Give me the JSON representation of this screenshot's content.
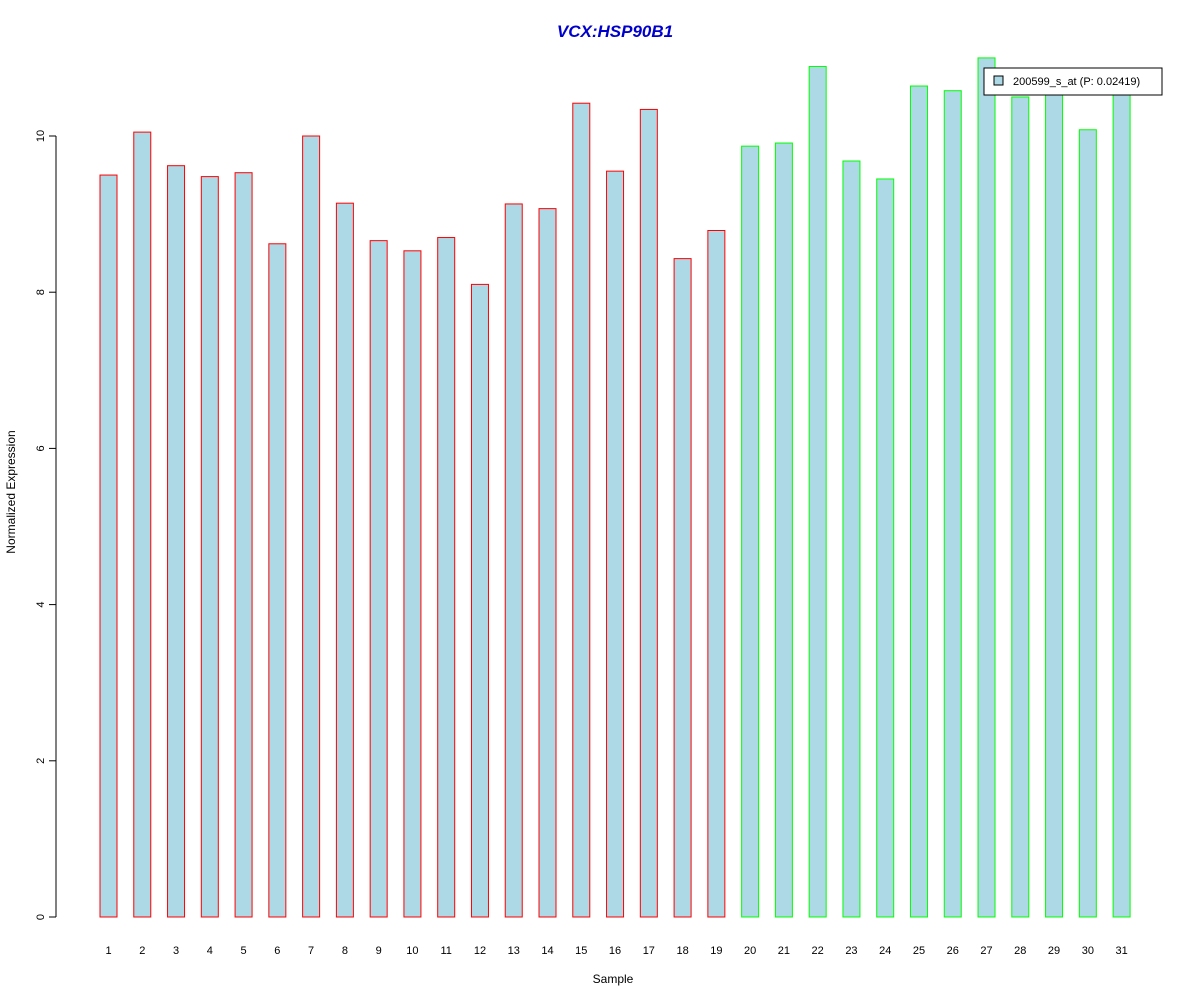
{
  "chart_data": {
    "type": "bar",
    "title": "VCX:HSP90B1",
    "xlabel": "Sample",
    "ylabel": "Normalized Expression",
    "categories": [
      "1",
      "2",
      "3",
      "4",
      "5",
      "6",
      "7",
      "8",
      "9",
      "10",
      "11",
      "12",
      "13",
      "14",
      "15",
      "16",
      "17",
      "18",
      "19",
      "20",
      "21",
      "22",
      "23",
      "24",
      "25",
      "26",
      "27",
      "28",
      "29",
      "30",
      "31"
    ],
    "series": [
      {
        "name": "200599_s_at (P: 0.02419)",
        "values": [
          9.5,
          10.05,
          9.62,
          9.48,
          9.53,
          8.62,
          10.0,
          9.14,
          8.66,
          8.53,
          8.7,
          8.1,
          9.13,
          9.07,
          10.42,
          9.55,
          10.34,
          8.43,
          8.79,
          9.87,
          9.91,
          10.89,
          9.68,
          9.45,
          10.64,
          10.58,
          11.0,
          10.5,
          10.58,
          10.08,
          10.65
        ]
      }
    ],
    "border_groups": [
      "red",
      "red",
      "red",
      "red",
      "red",
      "red",
      "red",
      "red",
      "red",
      "red",
      "red",
      "red",
      "red",
      "red",
      "red",
      "red",
      "red",
      "red",
      "red",
      "green",
      "green",
      "green",
      "green",
      "green",
      "green",
      "green",
      "green",
      "green",
      "green",
      "green",
      "green"
    ],
    "yticks": [
      0,
      2,
      4,
      6,
      8,
      10
    ],
    "ylim": [
      0,
      11
    ],
    "legend_position": "top-right",
    "colors": {
      "bar_fill": "#add8e6",
      "border_red": "#ff0000",
      "border_green": "#00ff00",
      "title": "#0000cc",
      "axis": "#000000"
    }
  }
}
